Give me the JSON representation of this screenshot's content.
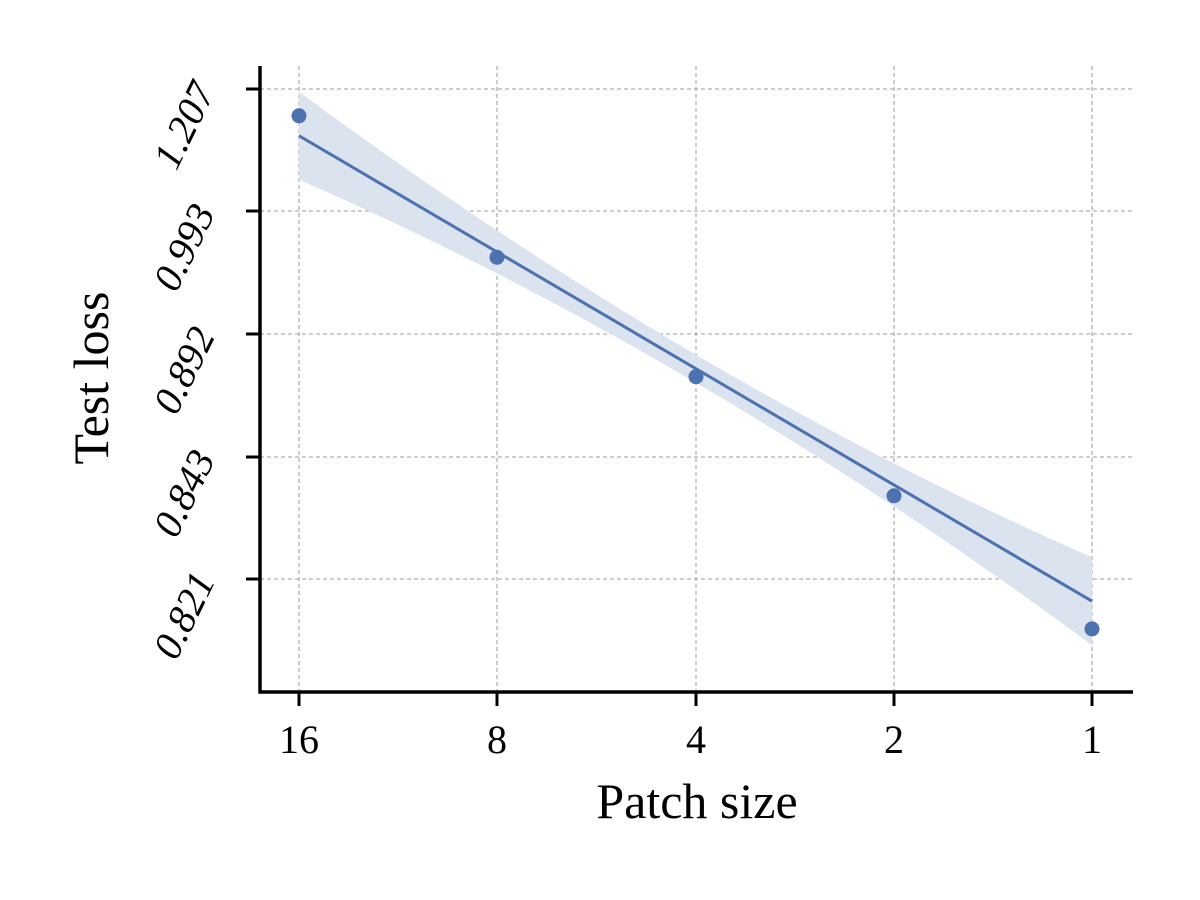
{
  "chart_data": {
    "type": "scatter",
    "title": "",
    "xlabel": "Patch size",
    "ylabel": "Test loss",
    "x_categories": [
      "16",
      "8",
      "4",
      "2",
      "1"
    ],
    "y_tick_labels": [
      "0.821",
      "0.843",
      "0.892",
      "0.993",
      "1.207"
    ],
    "y_scale": "nonlinear (ordinal tick spacing)",
    "grid": true,
    "grid_style": "dashed",
    "legend": "none",
    "colors": {
      "series": "#4c72b0",
      "band": "#dbe3ef",
      "grid": "#b0b0b0",
      "axis": "#000000"
    },
    "series": [
      {
        "points": [
          {
            "x": "16",
            "y": 1.16
          },
          {
            "x": "8",
            "y": 0.955
          },
          {
            "x": "4",
            "y": 0.875
          },
          {
            "x": "2",
            "y": 0.836
          },
          {
            "x": "1",
            "y": 0.812
          }
        ],
        "fit_line": {
          "start_y": 1.125,
          "end_y": 0.817
        },
        "confidence_band": true
      }
    ]
  }
}
